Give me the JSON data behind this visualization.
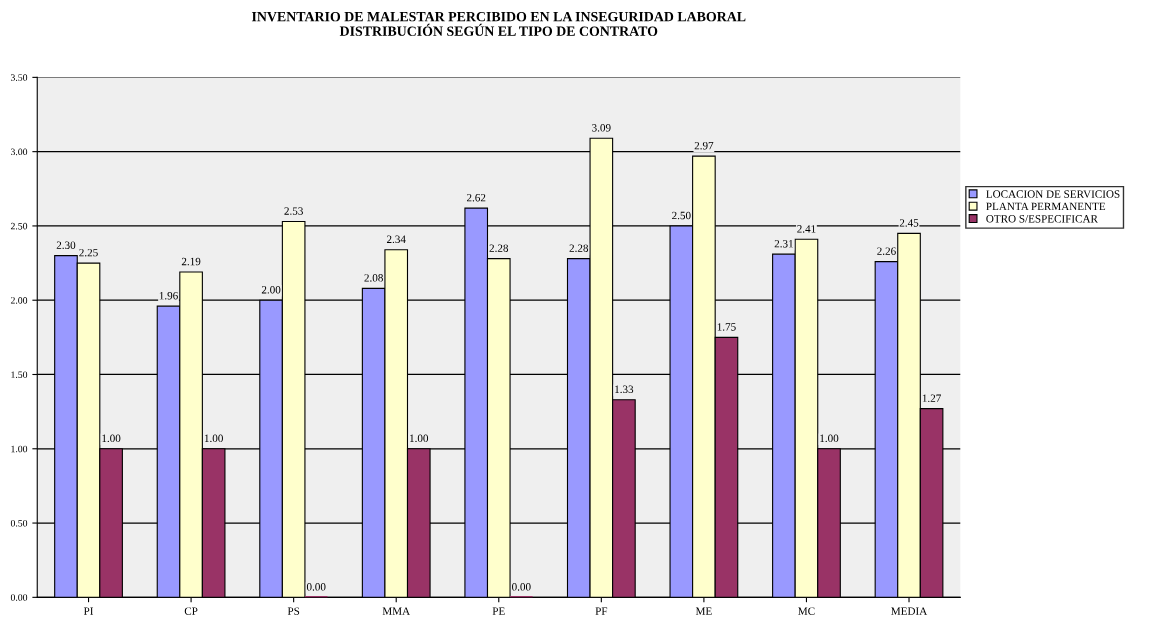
{
  "chart_data": {
    "type": "bar",
    "title": "INVENTARIO DE MALESTAR PERCIBIDO EN LA INSEGURIDAD LABORAL\nDISTRIBUCIÓN SEGÚN EL TIPO DE CONTRATO",
    "categories": [
      "PI",
      "CP",
      "PS",
      "MMA",
      "PE",
      "PF",
      "ME",
      "MC",
      "MEDIA"
    ],
    "series": [
      {
        "name": "LOCACION DE SERVICIOS",
        "color": "#9999ff",
        "values": [
          2.3,
          1.96,
          2.0,
          2.08,
          2.62,
          2.28,
          2.5,
          2.31,
          2.26
        ],
        "value_labels": [
          "2.30",
          "1.96",
          "2.00",
          "2.08",
          "2.62",
          "2.28",
          "2.50",
          "2.31",
          "2.26"
        ]
      },
      {
        "name": "PLANTA PERMANENTE",
        "color": "#ffffcc",
        "values": [
          2.25,
          2.19,
          2.53,
          2.34,
          2.28,
          3.09,
          2.97,
          2.41,
          2.45
        ],
        "value_labels": [
          "2.25",
          "2.19",
          "2.53",
          "2.34",
          "2.28",
          "3.09",
          "2.97",
          "2.41",
          "2.45"
        ]
      },
      {
        "name": "OTRO S/ESPECIFICAR",
        "color": "#993366",
        "values": [
          1.0,
          1.0,
          0.0,
          1.0,
          0.0,
          1.33,
          1.75,
          1.0,
          1.27
        ],
        "value_labels": [
          "1.00",
          "1.00",
          "0.00",
          "1.00",
          "0.00",
          "1.33",
          "1.75",
          "1.00",
          "1.27"
        ]
      }
    ],
    "ylim": [
      0,
      3.5
    ],
    "yticks": [
      {
        "value": 0,
        "label": "0.00"
      },
      {
        "value": 0.5,
        "label": "0.50"
      },
      {
        "value": 1,
        "label": "1.00"
      },
      {
        "value": 1.5,
        "label": "1.50"
      },
      {
        "value": 2,
        "label": "2.00"
      },
      {
        "value": 2.5,
        "label": "2.50"
      },
      {
        "value": 3,
        "label": "3.00"
      },
      {
        "value": 3.5,
        "label": "3.50"
      }
    ],
    "grid": "y",
    "legend": "right"
  }
}
